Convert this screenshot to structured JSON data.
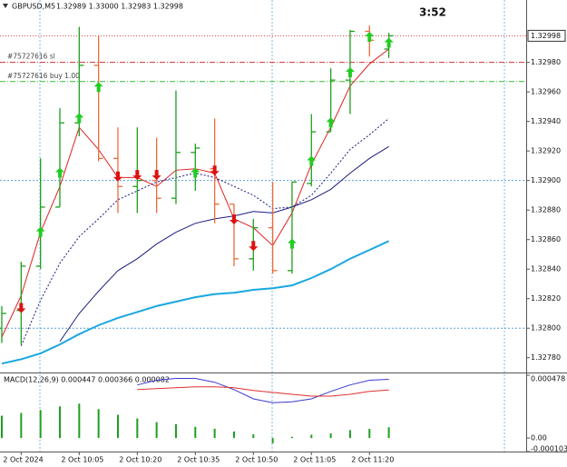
{
  "chart_data": [
    {
      "type": "ohlc",
      "title": "GBPUSD,M5",
      "quote": "1.32989 1.33000 1.32983 1.32998",
      "timer": "3:52",
      "categories": [
        null,
        "2 Oct 2024",
        null,
        null,
        "2 Oct 10:05",
        null,
        null,
        "2 Oct 10:20",
        null,
        null,
        "2 Oct 10:35",
        null,
        null,
        "2 Oct 10:50",
        null,
        null,
        "2 Oct 11:05",
        null,
        null,
        "2 Oct 11:20",
        null
      ],
      "open": [
        1.328,
        1.32812,
        1.32842,
        1.32882,
        1.32939,
        1.32978,
        1.32915,
        1.32896,
        1.329,
        1.32888,
        1.32919,
        1.32908,
        1.32884,
        1.32847,
        1.32868,
        1.32839,
        1.32898,
        1.32933,
        1.32968,
        1.33001,
        1.32989
      ],
      "high": [
        1.32815,
        1.32845,
        1.32915,
        1.32949,
        1.33004,
        1.32998,
        1.32936,
        1.32936,
        1.32929,
        1.32961,
        1.32925,
        1.32942,
        1.32884,
        1.32874,
        1.32899,
        1.32899,
        1.32945,
        1.32976,
        1.33002,
        1.33005,
        1.33
      ],
      "low": [
        1.3279,
        1.32789,
        1.3284,
        1.32882,
        1.3293,
        1.32913,
        1.32878,
        1.32878,
        1.32878,
        1.32884,
        1.32893,
        1.32871,
        1.32842,
        1.32839,
        1.32837,
        1.32837,
        1.32896,
        1.32933,
        1.32945,
        1.32984,
        1.32983
      ],
      "close": [
        1.3281,
        1.32842,
        1.32882,
        1.32939,
        1.32978,
        1.32915,
        1.32896,
        1.329,
        1.32888,
        1.32919,
        1.32922,
        1.32884,
        1.32847,
        1.32868,
        1.32839,
        1.32899,
        1.32933,
        1.32968,
        1.33001,
        1.32995,
        1.32998
      ],
      "up_color": "#1e9e1e",
      "down_color": "#ee6a3a",
      "series": [
        {
          "color": "#e02020",
          "style": "solid",
          "values": [
            1.32794,
            1.32822,
            1.32865,
            1.32896,
            1.32936,
            1.32921,
            1.32902,
            1.32902,
            1.32896,
            1.32907,
            1.32908,
            1.32905,
            1.32874,
            1.32868,
            1.32856,
            1.32878,
            1.32911,
            1.32936,
            1.32964,
            1.32979,
            1.32989
          ]
        },
        {
          "color": "#1c1c80",
          "style": "solid",
          "values": [
            null,
            null,
            null,
            1.32791,
            1.3281,
            1.32825,
            1.32839,
            1.32847,
            1.32857,
            1.32865,
            1.32871,
            1.32874,
            1.32876,
            1.32879,
            1.32878,
            1.32882,
            1.32887,
            1.32894,
            1.32905,
            1.32915,
            1.32923
          ]
        },
        {
          "color": "#1c1c80",
          "style": "dotted",
          "values": [
            null,
            1.32788,
            1.32819,
            1.32844,
            1.32862,
            1.32874,
            1.32887,
            1.32893,
            1.32899,
            1.32902,
            1.32905,
            1.32902,
            1.32896,
            1.3289,
            1.32881,
            1.32882,
            1.3289,
            1.32905,
            1.32921,
            1.32931,
            1.32942
          ]
        },
        {
          "color": "#1aa7e0",
          "style": "thick",
          "values": [
            1.32776,
            1.32779,
            1.32783,
            1.32789,
            1.32796,
            1.32802,
            1.32807,
            1.32811,
            1.32815,
            1.32818,
            1.32821,
            1.32823,
            1.32824,
            1.32826,
            1.32827,
            1.32829,
            1.32834,
            1.3284,
            1.32847,
            1.32853,
            1.32859
          ]
        }
      ],
      "buy_signals": [
        null,
        null,
        1.32865,
        1.32905,
        1.32942,
        1.32963,
        null,
        null,
        null,
        null,
        1.32905,
        null,
        null,
        null,
        null,
        1.32857,
        1.32913,
        1.32939,
        1.32973,
        1.32997,
        1.32993
      ],
      "sell_signals": [
        null,
        1.32814,
        null,
        null,
        null,
        null,
        1.32903,
        1.32904,
        1.32904,
        null,
        null,
        1.32907,
        1.32874,
        1.32856,
        null,
        null,
        null,
        null,
        null,
        null,
        null
      ],
      "buy_color": "#22cc22",
      "sell_color": "#dd1111",
      "orders": [
        {
          "label": "#75727616 sl",
          "value": 1.3298,
          "color": "#cc3333"
        },
        {
          "label": "#75727616 buy 1.00",
          "value": 1.32967,
          "color": "#33bb33"
        }
      ],
      "current_price": 1.32998,
      "current_price_color": "#e04040",
      "levels": [
        1.329,
        1.328
      ],
      "levels_color": "#5aa0d8",
      "ylim": [
        1.3277,
        1.33021
      ],
      "yticks": [
        {
          "value": 1.3298,
          "label": "1.32980"
        },
        {
          "value": 1.3296,
          "label": "1.32960"
        },
        {
          "value": 1.3294,
          "label": "1.32940"
        },
        {
          "value": 1.3292,
          "label": "1.32920"
        },
        {
          "value": 1.329,
          "label": "1.32900"
        },
        {
          "value": 1.3288,
          "label": "1.32880"
        },
        {
          "value": 1.3286,
          "label": "1.32860"
        },
        {
          "value": 1.3284,
          "label": "1.32840"
        },
        {
          "value": 1.3282,
          "label": "1.32820"
        },
        {
          "value": 1.328,
          "label": "1.32800"
        },
        {
          "value": 1.3278,
          "label": "1.32780"
        }
      ],
      "grid": false
    },
    {
      "type": "macd",
      "title": "MACD(12,26,9) 0.000447 0.000366 0.000082",
      "values": [
        0.00017,
        0.000191,
        0.000213,
        0.000241,
        0.000262,
        0.00022,
        0.000177,
        0.000149,
        0.000121,
        0.000106,
        8.5e-05,
        7.1e-05,
        5e-05,
        2.8e-05,
        -4e-05,
        1e-05,
        2.5e-05,
        3.5e-05,
        6e-05,
        7e-05,
        8.2e-05
      ],
      "color": "#1e9e1e",
      "series": [
        {
          "color": "#3a3ad0",
          "style": "solid",
          "values": [
            null,
            null,
            null,
            null,
            null,
            null,
            null,
            0.000404,
            0.00044,
            0.000454,
            0.000454,
            0.000425,
            0.000369,
            0.000298,
            0.000269,
            0.000276,
            0.000298,
            0.000355,
            0.000404,
            0.00044,
            0.000447
          ]
        },
        {
          "color": "#e03030",
          "style": "solid",
          "values": [
            null,
            null,
            null,
            null,
            null,
            null,
            null,
            0.000369,
            0.000376,
            0.000383,
            0.00039,
            0.00039,
            0.000383,
            0.000362,
            0.000347,
            0.000333,
            0.000319,
            0.000319,
            0.000333,
            0.000355,
            0.000366
          ]
        }
      ],
      "ylim": [
        -0.000103,
        0.000478
      ],
      "yticks": [
        0.000478,
        {
          "value": 0,
          "label": "0.00"
        },
        -0.000103
      ],
      "grid": false
    }
  ]
}
